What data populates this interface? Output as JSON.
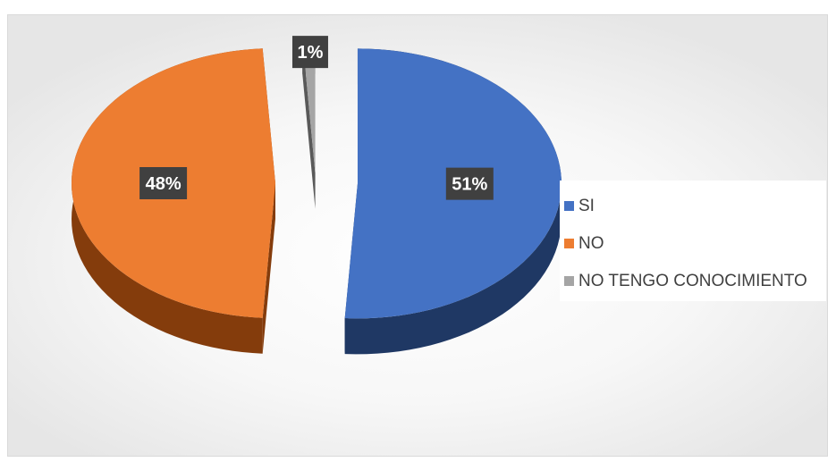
{
  "chart_data": {
    "type": "pie",
    "title": "",
    "categories": [
      "SI",
      "NO",
      "NO TENGO CONOCIMIENTO"
    ],
    "values": [
      51,
      48,
      1
    ],
    "data_labels": [
      "51%",
      "48%",
      "1%"
    ],
    "colors": [
      "#4472C4",
      "#ED7D31",
      "#A5A5A5"
    ],
    "dark_colors": [
      "#1F3864",
      "#843C0C",
      "#595959"
    ],
    "style": "3d-exploded",
    "legend": {
      "position": "right",
      "entries": [
        "SI",
        "NO",
        "NO TENGO CONOCIMIENTO"
      ]
    }
  }
}
